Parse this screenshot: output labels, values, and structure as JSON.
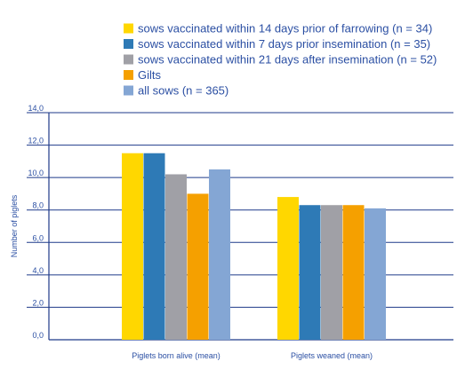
{
  "chart_data": {
    "type": "bar",
    "categories": [
      "Piglets born alive (mean)",
      "Piglets weaned (mean)"
    ],
    "series": [
      {
        "name": "sows vaccinated within 14 days prior of farrowing (n = 34)",
        "color": "#FFD700",
        "values": [
          11.5,
          8.8
        ]
      },
      {
        "name": "sows vaccinated within 7 days prior insemination (n = 35)",
        "color": "#2E7AB6",
        "values": [
          11.5,
          8.3
        ]
      },
      {
        "name": "sows vaccinated within 21 days after insemination (n = 52)",
        "color": "#A0A0A6",
        "values": [
          10.2,
          8.3
        ]
      },
      {
        "name": "Gilts",
        "color": "#F5A000",
        "values": [
          9.0,
          8.3
        ]
      },
      {
        "name": "all sows (n = 365)",
        "color": "#84A6D4",
        "values": [
          10.5,
          8.1
        ]
      }
    ],
    "ylabel": "Number of piglets",
    "xlabel": "",
    "ylim": [
      0,
      14
    ],
    "yticks": [
      "0,0",
      "2,0",
      "4,0",
      "6,0",
      "8,0",
      "10,0",
      "12,0",
      "14,0"
    ],
    "legend_position": "top",
    "grid": true
  }
}
